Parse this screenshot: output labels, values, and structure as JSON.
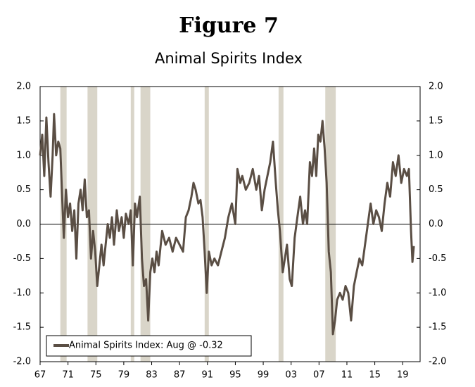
{
  "chart_data": {
    "type": "line",
    "title": "Figure 7",
    "subtitle": "Animal Spirits Index",
    "series": [
      {
        "name": "Animal Spirits Index: Aug @ -0.32",
        "color": "#5a4e44",
        "values": [
          1.0,
          1.3,
          0.7,
          1.55,
          0.9,
          0.4,
          1.0,
          1.6,
          1.0,
          1.2,
          1.1,
          0.3,
          -0.2,
          0.5,
          0.1,
          0.3,
          -0.1,
          0.2,
          -0.5,
          0.3,
          0.5,
          0.2,
          0.65,
          0.1,
          0.2,
          -0.5,
          -0.1,
          -0.4,
          -0.9,
          -0.6,
          -0.3,
          -0.6,
          -0.3,
          0.0,
          -0.2,
          0.1,
          -0.3,
          0.2,
          -0.1,
          0.1,
          -0.2,
          0.15,
          0.0,
          0.2,
          -0.6,
          0.3,
          0.1,
          0.4,
          -0.5,
          -0.9,
          -0.8,
          -1.4,
          -0.7,
          -0.5,
          -0.7,
          -0.4,
          -0.6,
          -0.1,
          -0.3,
          -0.2,
          -0.4,
          -0.2,
          -0.3,
          -0.4,
          0.1,
          0.2,
          0.4,
          0.6,
          0.5,
          0.3,
          0.35,
          0.1,
          -0.4,
          -1.0,
          -0.4,
          -0.6,
          -0.5,
          -0.6,
          -0.4,
          -0.2,
          0.1,
          0.3,
          0.0,
          0.8,
          0.6,
          0.7,
          0.5,
          0.6,
          0.8,
          0.5,
          0.7,
          0.2,
          0.5,
          0.7,
          0.9,
          1.2,
          0.6,
          0.2,
          -0.1,
          -0.7,
          -0.5,
          -0.3,
          -0.8,
          -0.9,
          -0.2,
          0.1,
          0.4,
          0.0,
          0.2,
          0.0,
          0.9,
          0.7,
          1.1,
          0.7,
          1.3,
          1.2,
          1.5,
          1.1,
          0.6,
          -0.4,
          -0.7,
          -1.6,
          -1.4,
          -1.1,
          -1.0,
          -1.1,
          -0.9,
          -1.0,
          -1.4,
          -0.9,
          -0.7,
          -0.5,
          -0.6,
          -0.3,
          0.0,
          0.3,
          0.0,
          0.2,
          0.1,
          -0.1,
          0.3,
          0.6,
          0.4,
          0.9,
          0.7,
          1.0,
          0.6,
          0.8,
          0.7,
          0.8,
          -0.1,
          -0.55,
          -0.32
        ]
      }
    ],
    "x": [
      1967.0,
      1967.3,
      1967.6,
      1967.9,
      1968.2,
      1968.5,
      1968.8,
      1969.0,
      1969.3,
      1969.6,
      1969.9,
      1970.2,
      1970.4,
      1970.7,
      1971.0,
      1971.3,
      1971.6,
      1971.9,
      1972.2,
      1972.5,
      1972.8,
      1973.1,
      1973.4,
      1973.7,
      1974.0,
      1974.3,
      1974.6,
      1974.9,
      1975.2,
      1975.5,
      1975.8,
      1976.1,
      1976.4,
      1976.7,
      1977.0,
      1977.3,
      1977.6,
      1978.0,
      1978.3,
      1978.7,
      1979.0,
      1979.3,
      1979.7,
      1980.0,
      1980.3,
      1980.6,
      1980.9,
      1981.3,
      1981.6,
      1981.9,
      1982.2,
      1982.5,
      1982.8,
      1983.1,
      1983.4,
      1983.7,
      1984.0,
      1984.5,
      1985.0,
      1985.5,
      1986.0,
      1986.5,
      1987.0,
      1987.5,
      1987.9,
      1988.3,
      1988.7,
      1989.0,
      1989.3,
      1989.7,
      1990.0,
      1990.3,
      1990.6,
      1990.9,
      1991.2,
      1991.6,
      1992.0,
      1992.5,
      1993.0,
      1993.5,
      1994.0,
      1994.5,
      1995.0,
      1995.3,
      1995.7,
      1996.0,
      1996.5,
      1997.0,
      1997.5,
      1998.0,
      1998.4,
      1998.8,
      1999.2,
      1999.6,
      2000.0,
      2000.4,
      2000.8,
      2001.1,
      2001.4,
      2001.8,
      2002.1,
      2002.4,
      2002.8,
      2003.1,
      2003.5,
      2003.9,
      2004.3,
      2004.7,
      2005.0,
      2005.3,
      2005.7,
      2006.0,
      2006.3,
      2006.6,
      2006.9,
      2007.2,
      2007.5,
      2007.8,
      2008.1,
      2008.4,
      2008.7,
      2009.0,
      2009.3,
      2009.6,
      2010.0,
      2010.4,
      2010.8,
      2011.2,
      2011.6,
      2012.0,
      2012.4,
      2012.8,
      2013.2,
      2013.6,
      2014.0,
      2014.4,
      2014.8,
      2015.2,
      2015.6,
      2016.0,
      2016.4,
      2016.8,
      2017.2,
      2017.6,
      2018.0,
      2018.4,
      2018.8,
      2019.2,
      2019.6,
      2019.9,
      2020.2,
      2020.4,
      2020.6
    ],
    "shading": [
      [
        1969.9,
        1970.8
      ],
      [
        1973.8,
        1975.2
      ],
      [
        1980.0,
        1980.5
      ],
      [
        1981.4,
        1982.8
      ],
      [
        1990.6,
        1991.2
      ],
      [
        2001.2,
        2001.9
      ],
      [
        2007.9,
        2009.4
      ]
    ],
    "shading_color": "#d9d5c9",
    "xlim": [
      1967,
      2021.5
    ],
    "xticks": [
      {
        "value": 1967,
        "label": "67"
      },
      {
        "value": 1971,
        "label": "71"
      },
      {
        "value": 1975,
        "label": "75"
      },
      {
        "value": 1979,
        "label": "79"
      },
      {
        "value": 1983,
        "label": "83"
      },
      {
        "value": 1987,
        "label": "87"
      },
      {
        "value": 1991,
        "label": "91"
      },
      {
        "value": 1995,
        "label": "95"
      },
      {
        "value": 1999,
        "label": "99"
      },
      {
        "value": 2003,
        "label": "03"
      },
      {
        "value": 2007,
        "label": "07"
      },
      {
        "value": 2011,
        "label": "11"
      },
      {
        "value": 2015,
        "label": "15"
      },
      {
        "value": 2019,
        "label": "19"
      }
    ],
    "ylim": [
      -2,
      2
    ],
    "yticks": [
      {
        "value": 2,
        "label": "2.0"
      },
      1.5,
      {
        "value": 1,
        "label": "1.0"
      },
      0.5,
      {
        "value": 0,
        "label": "0.0"
      },
      -0.5,
      {
        "value": -1,
        "label": "-1.0"
      },
      -1.5,
      {
        "value": -2,
        "label": "-2.0"
      }
    ],
    "y2lim": [
      -2,
      2
    ],
    "y2ticks": [
      {
        "value": 2,
        "label": "2.0"
      },
      1.5,
      {
        "value": 1,
        "label": "1.0"
      },
      0.5,
      {
        "value": 0,
        "label": "0.0"
      },
      -0.5,
      {
        "value": -1,
        "label": "-1.0"
      },
      -1.5,
      {
        "value": -2,
        "label": "-2.0"
      }
    ],
    "legend": "bottom-left"
  }
}
